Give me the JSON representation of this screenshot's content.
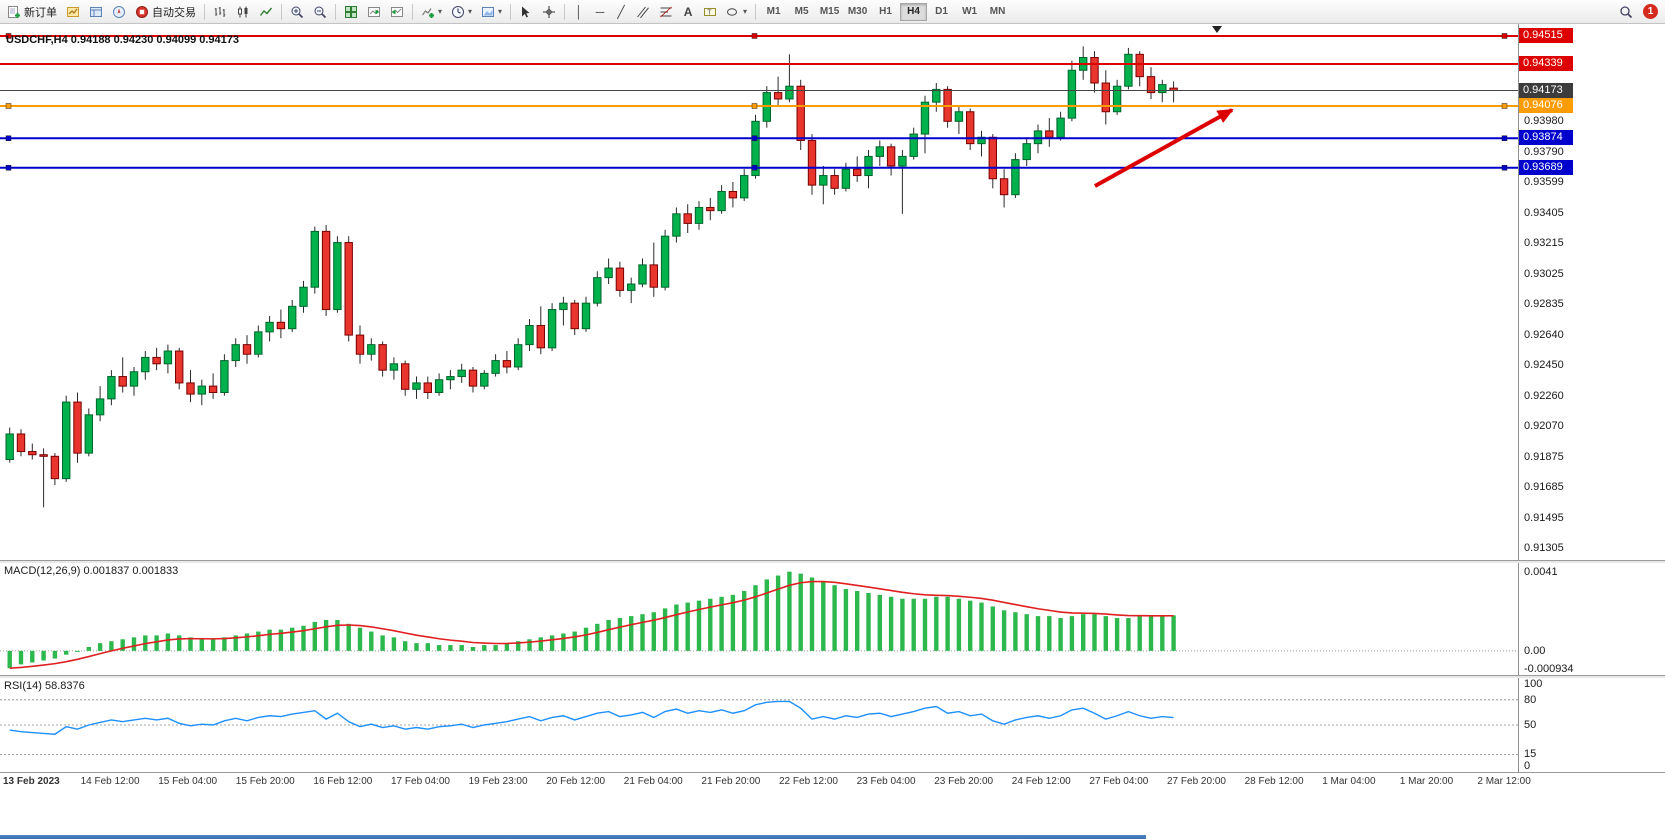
{
  "toolbar": {
    "new_order_label": "新订单",
    "autotrading_label": "自动交易",
    "timeframes": [
      "M1",
      "M5",
      "M15",
      "M30",
      "H1",
      "H4",
      "D1",
      "W1",
      "MN"
    ],
    "active_timeframe": "H4",
    "notification_count": "1",
    "icons": [
      "new-order",
      "market-watch",
      "data-window",
      "navigator",
      "autotrading",
      "bars-chart",
      "candles-chart",
      "line-chart",
      "zoom-in",
      "zoom-out",
      "tile-windows",
      "chart-shift",
      "chart-autoscroll",
      "indicators-add",
      "periods",
      "templates",
      "cursor",
      "crosshair",
      "vertical-line",
      "horizontal-line",
      "trendline",
      "equidistant-channel",
      "fibonacci",
      "text",
      "text-label",
      "shapes",
      "search",
      "notifications"
    ]
  },
  "chart": {
    "symbol_info": "USDCHF,H4 0.94188 0.94230 0.94099 0.94173"
  },
  "chart_data": {
    "type": "candlestick",
    "symbol": "USDCHF",
    "timeframe": "H4",
    "ohlc_current": {
      "open": "0.94188",
      "high": "0.94230",
      "low": "0.94099",
      "close": "0.94173"
    },
    "ylim": [
      0.9123,
      0.9459
    ],
    "colors": {
      "up": "#00B14C",
      "up_border": "#00662C",
      "down": "#E8352E",
      "down_border": "#7A0000",
      "wick": "#2A2A2A",
      "arrow": "#DD0000"
    },
    "candles": [
      [
        0.9186,
        0.9206,
        0.9184,
        0.9202
      ],
      [
        0.9202,
        0.9205,
        0.9188,
        0.9191
      ],
      [
        0.9191,
        0.9196,
        0.9186,
        0.9189
      ],
      [
        0.9189,
        0.9193,
        0.9156,
        0.9188
      ],
      [
        0.9188,
        0.919,
        0.917,
        0.9174
      ],
      [
        0.9174,
        0.9226,
        0.9172,
        0.9222
      ],
      [
        0.9222,
        0.9228,
        0.9184,
        0.919
      ],
      [
        0.919,
        0.9218,
        0.9188,
        0.9214
      ],
      [
        0.9214,
        0.9232,
        0.921,
        0.9224
      ],
      [
        0.9224,
        0.9242,
        0.922,
        0.9238
      ],
      [
        0.9238,
        0.925,
        0.9228,
        0.9232
      ],
      [
        0.9232,
        0.9244,
        0.9226,
        0.9241
      ],
      [
        0.9241,
        0.9254,
        0.9236,
        0.925
      ],
      [
        0.925,
        0.9256,
        0.9242,
        0.9246
      ],
      [
        0.9246,
        0.9258,
        0.924,
        0.9254
      ],
      [
        0.9254,
        0.9256,
        0.923,
        0.9234
      ],
      [
        0.9234,
        0.9242,
        0.9222,
        0.9227
      ],
      [
        0.9227,
        0.9236,
        0.922,
        0.9232
      ],
      [
        0.9232,
        0.924,
        0.9224,
        0.9228
      ],
      [
        0.9228,
        0.9252,
        0.9226,
        0.9248
      ],
      [
        0.9248,
        0.9262,
        0.9244,
        0.9258
      ],
      [
        0.9258,
        0.9264,
        0.9246,
        0.9252
      ],
      [
        0.9252,
        0.927,
        0.925,
        0.9266
      ],
      [
        0.9266,
        0.9276,
        0.926,
        0.9272
      ],
      [
        0.9272,
        0.928,
        0.9262,
        0.9268
      ],
      [
        0.9268,
        0.9286,
        0.9266,
        0.9282
      ],
      [
        0.9282,
        0.9298,
        0.9278,
        0.9294
      ],
      [
        0.9294,
        0.9332,
        0.929,
        0.9329
      ],
      [
        0.9329,
        0.9333,
        0.9276,
        0.928
      ],
      [
        0.928,
        0.9326,
        0.9278,
        0.9322
      ],
      [
        0.9322,
        0.9326,
        0.926,
        0.9264
      ],
      [
        0.9264,
        0.927,
        0.9246,
        0.9252
      ],
      [
        0.9252,
        0.9262,
        0.9248,
        0.9258
      ],
      [
        0.9258,
        0.926,
        0.9238,
        0.9242
      ],
      [
        0.9242,
        0.925,
        0.9236,
        0.9246
      ],
      [
        0.9246,
        0.9248,
        0.9226,
        0.923
      ],
      [
        0.923,
        0.9238,
        0.9224,
        0.9234
      ],
      [
        0.9234,
        0.9238,
        0.9224,
        0.9228
      ],
      [
        0.9228,
        0.924,
        0.9226,
        0.9236
      ],
      [
        0.9236,
        0.9242,
        0.923,
        0.9238
      ],
      [
        0.9238,
        0.9246,
        0.9234,
        0.9242
      ],
      [
        0.9242,
        0.9244,
        0.9228,
        0.9232
      ],
      [
        0.9232,
        0.9242,
        0.923,
        0.924
      ],
      [
        0.924,
        0.9252,
        0.9238,
        0.9248
      ],
      [
        0.9248,
        0.9254,
        0.924,
        0.9244
      ],
      [
        0.9244,
        0.9262,
        0.9242,
        0.9258
      ],
      [
        0.9258,
        0.9274,
        0.9254,
        0.927
      ],
      [
        0.927,
        0.9282,
        0.9252,
        0.9256
      ],
      [
        0.9256,
        0.9284,
        0.9254,
        0.928
      ],
      [
        0.928,
        0.9288,
        0.927,
        0.9284
      ],
      [
        0.9284,
        0.9286,
        0.9264,
        0.9268
      ],
      [
        0.9268,
        0.9288,
        0.9266,
        0.9284
      ],
      [
        0.9284,
        0.9304,
        0.9282,
        0.93
      ],
      [
        0.93,
        0.9312,
        0.9296,
        0.9306
      ],
      [
        0.9306,
        0.931,
        0.9288,
        0.9292
      ],
      [
        0.9292,
        0.93,
        0.9284,
        0.9296
      ],
      [
        0.9296,
        0.9312,
        0.9294,
        0.9308
      ],
      [
        0.9308,
        0.9322,
        0.9288,
        0.9294
      ],
      [
        0.9294,
        0.933,
        0.9292,
        0.9326
      ],
      [
        0.9326,
        0.9344,
        0.9322,
        0.934
      ],
      [
        0.934,
        0.9346,
        0.9328,
        0.9334
      ],
      [
        0.9334,
        0.9348,
        0.933,
        0.9344
      ],
      [
        0.9344,
        0.935,
        0.9336,
        0.9342
      ],
      [
        0.9342,
        0.9358,
        0.934,
        0.9354
      ],
      [
        0.9354,
        0.936,
        0.9344,
        0.935
      ],
      [
        0.935,
        0.9368,
        0.9348,
        0.9364
      ],
      [
        0.9364,
        0.9402,
        0.9362,
        0.9398
      ],
      [
        0.9398,
        0.942,
        0.9394,
        0.9416
      ],
      [
        0.9416,
        0.9426,
        0.9408,
        0.9412
      ],
      [
        0.9412,
        0.944,
        0.941,
        0.942
      ],
      [
        0.942,
        0.9424,
        0.938,
        0.9386
      ],
      [
        0.9386,
        0.939,
        0.9352,
        0.9358
      ],
      [
        0.9358,
        0.937,
        0.9346,
        0.9364
      ],
      [
        0.9364,
        0.9368,
        0.9352,
        0.9356
      ],
      [
        0.9356,
        0.9372,
        0.9354,
        0.9368
      ],
      [
        0.9368,
        0.9376,
        0.936,
        0.9364
      ],
      [
        0.9364,
        0.938,
        0.9356,
        0.9376
      ],
      [
        0.9376,
        0.9386,
        0.937,
        0.9382
      ],
      [
        0.9382,
        0.9384,
        0.9364,
        0.937
      ],
      [
        0.937,
        0.938,
        0.934,
        0.9376
      ],
      [
        0.9376,
        0.9394,
        0.9374,
        0.939
      ],
      [
        0.939,
        0.9414,
        0.9378,
        0.941
      ],
      [
        0.941,
        0.9422,
        0.9404,
        0.9418
      ],
      [
        0.9418,
        0.942,
        0.9394,
        0.9398
      ],
      [
        0.9398,
        0.9408,
        0.939,
        0.9404
      ],
      [
        0.9404,
        0.9406,
        0.938,
        0.9384
      ],
      [
        0.9384,
        0.9392,
        0.9376,
        0.9388
      ],
      [
        0.9388,
        0.939,
        0.9356,
        0.9362
      ],
      [
        0.9362,
        0.9368,
        0.9344,
        0.9352
      ],
      [
        0.9352,
        0.9378,
        0.935,
        0.9374
      ],
      [
        0.9374,
        0.9388,
        0.937,
        0.9384
      ],
      [
        0.9384,
        0.9396,
        0.9378,
        0.9392
      ],
      [
        0.9392,
        0.94,
        0.9382,
        0.9388
      ],
      [
        0.9388,
        0.9404,
        0.9386,
        0.94
      ],
      [
        0.94,
        0.9436,
        0.9398,
        0.943
      ],
      [
        0.943,
        0.9445,
        0.9424,
        0.9438
      ],
      [
        0.9438,
        0.9442,
        0.9416,
        0.9422
      ],
      [
        0.9422,
        0.943,
        0.9396,
        0.9404
      ],
      [
        0.9404,
        0.9424,
        0.9402,
        0.942
      ],
      [
        0.942,
        0.9444,
        0.9418,
        0.944
      ],
      [
        0.944,
        0.9442,
        0.942,
        0.9426
      ],
      [
        0.9426,
        0.9432,
        0.9412,
        0.9416
      ],
      [
        0.9416,
        0.9424,
        0.941,
        0.9421
      ],
      [
        0.94188,
        0.9423,
        0.94099,
        0.94173
      ]
    ],
    "hlines": [
      {
        "price": 0.94515,
        "label": "0.94515",
        "color": "#DD0000",
        "badge_bg": "#DD0000",
        "badge_fg": "#FFFFFF",
        "width": 2,
        "selected": true
      },
      {
        "price": 0.94339,
        "label": "0.94339",
        "color": "#DD0000",
        "badge_bg": "#DD0000",
        "badge_fg": "#FFFFFF",
        "width": 2,
        "selected": false
      },
      {
        "price": 0.94173,
        "label": "0.94173",
        "color": "#444444",
        "badge_bg": "#3C3C3C",
        "badge_fg": "#FFFFFF",
        "width": 1,
        "selected": false,
        "role": "bid-line"
      },
      {
        "price": 0.94076,
        "label": "0.94076",
        "color": "#FF9D00",
        "badge_bg": "#FF9D00",
        "badge_fg": "#FFFFFF",
        "width": 2,
        "selected": true
      },
      {
        "price": 0.93874,
        "label": "0.93874",
        "color": "#0000CD",
        "badge_bg": "#0000CD",
        "badge_fg": "#FFFFFF",
        "width": 2,
        "selected": true
      },
      {
        "price": 0.93689,
        "label": "0.93689",
        "color": "#0000CD",
        "badge_bg": "#0000CD",
        "badge_fg": "#FFFFFF",
        "width": 2,
        "selected": true
      }
    ],
    "price_ticks": [
      "0.93980",
      "0.93790",
      "0.93599",
      "0.93405",
      "0.93215",
      "0.93025",
      "0.92835",
      "0.92640",
      "0.92450",
      "0.92260",
      "0.92070",
      "0.91875",
      "0.91685",
      "0.91495",
      "0.91305"
    ],
    "trend_arrow": {
      "color": "#DD0000",
      "from": [
        1095,
        162
      ],
      "to": [
        1232,
        86
      ]
    },
    "macd": {
      "label": "MACD(12,26,9) 0.001837 0.001833",
      "values_text": [
        "0.001837",
        "0.001833"
      ],
      "scale": [
        "0.0041",
        "0.00",
        "-0.000934"
      ],
      "ylim": [
        -0.00125,
        0.00455
      ],
      "colors": {
        "histogram": "#2DB84D",
        "signal": "#E02020"
      },
      "histogram": [
        -0.0009,
        -0.0007,
        -0.0006,
        -0.0005,
        -0.0004,
        -0.0002,
        0.0,
        0.0002,
        0.0004,
        0.0005,
        0.0006,
        0.0007,
        0.0008,
        0.0008,
        0.0009,
        0.0008,
        0.0007,
        0.0006,
        0.0006,
        0.0007,
        0.0008,
        0.0009,
        0.001,
        0.0011,
        0.0011,
        0.0012,
        0.0013,
        0.0015,
        0.0016,
        0.0016,
        0.0014,
        0.0012,
        0.001,
        0.0008,
        0.0007,
        0.0005,
        0.0004,
        0.0004,
        0.0003,
        0.0003,
        0.0003,
        0.0002,
        0.0003,
        0.0003,
        0.0004,
        0.0005,
        0.0006,
        0.0007,
        0.0008,
        0.0009,
        0.001,
        0.0012,
        0.0014,
        0.0016,
        0.0017,
        0.0018,
        0.0019,
        0.002,
        0.0022,
        0.0024,
        0.0025,
        0.0026,
        0.0027,
        0.0028,
        0.0029,
        0.0031,
        0.0034,
        0.0037,
        0.0039,
        0.0041,
        0.004,
        0.0038,
        0.0036,
        0.0034,
        0.0032,
        0.0031,
        0.003,
        0.0029,
        0.0028,
        0.0027,
        0.0027,
        0.0027,
        0.0028,
        0.0028,
        0.0027,
        0.0026,
        0.0025,
        0.0023,
        0.0021,
        0.002,
        0.0019,
        0.0018,
        0.0018,
        0.0017,
        0.0018,
        0.0019,
        0.0019,
        0.0018,
        0.0017,
        0.0017,
        0.0018,
        0.0018,
        0.0018,
        0.001837
      ]
    },
    "rsi": {
      "label": "RSI(14) 58.8376",
      "value_text": "58.8376",
      "scale": [
        "100",
        "80",
        "50",
        "15",
        "0"
      ],
      "levels": [
        80,
        50,
        15
      ],
      "color": "#1E90FF",
      "values": [
        44,
        42,
        41,
        40,
        39,
        48,
        45,
        50,
        53,
        56,
        54,
        56,
        58,
        56,
        58,
        52,
        49,
        51,
        50,
        55,
        58,
        55,
        59,
        61,
        60,
        63,
        65,
        67,
        57,
        64,
        54,
        48,
        51,
        47,
        49,
        45,
        47,
        45,
        48,
        49,
        51,
        47,
        50,
        52,
        54,
        57,
        60,
        55,
        59,
        61,
        56,
        60,
        64,
        66,
        60,
        62,
        65,
        59,
        66,
        69,
        64,
        67,
        65,
        68,
        64,
        67,
        74,
        77,
        78,
        78,
        70,
        57,
        60,
        57,
        61,
        59,
        63,
        64,
        60,
        63,
        66,
        70,
        72,
        64,
        66,
        61,
        63,
        55,
        51,
        56,
        59,
        61,
        58,
        61,
        68,
        70,
        64,
        57,
        61,
        66,
        61,
        58,
        60,
        58.8
      ]
    },
    "time_labels": [
      "13 Feb 2023",
      "14 Feb 12:00",
      "15 Feb 04:00",
      "15 Feb 20:00",
      "16 Feb 12:00",
      "17 Feb 04:00",
      "19 Feb 23:00",
      "20 Feb 12:00",
      "21 Feb 04:00",
      "21 Feb 20:00",
      "22 Feb 12:00",
      "23 Feb 04:00",
      "23 Feb 20:00",
      "24 Feb 12:00",
      "27 Feb 04:00",
      "27 Feb 20:00",
      "28 Feb 12:00",
      "1 Mar 04:00",
      "1 Mar 20:00",
      "2 Mar 12:00"
    ]
  }
}
